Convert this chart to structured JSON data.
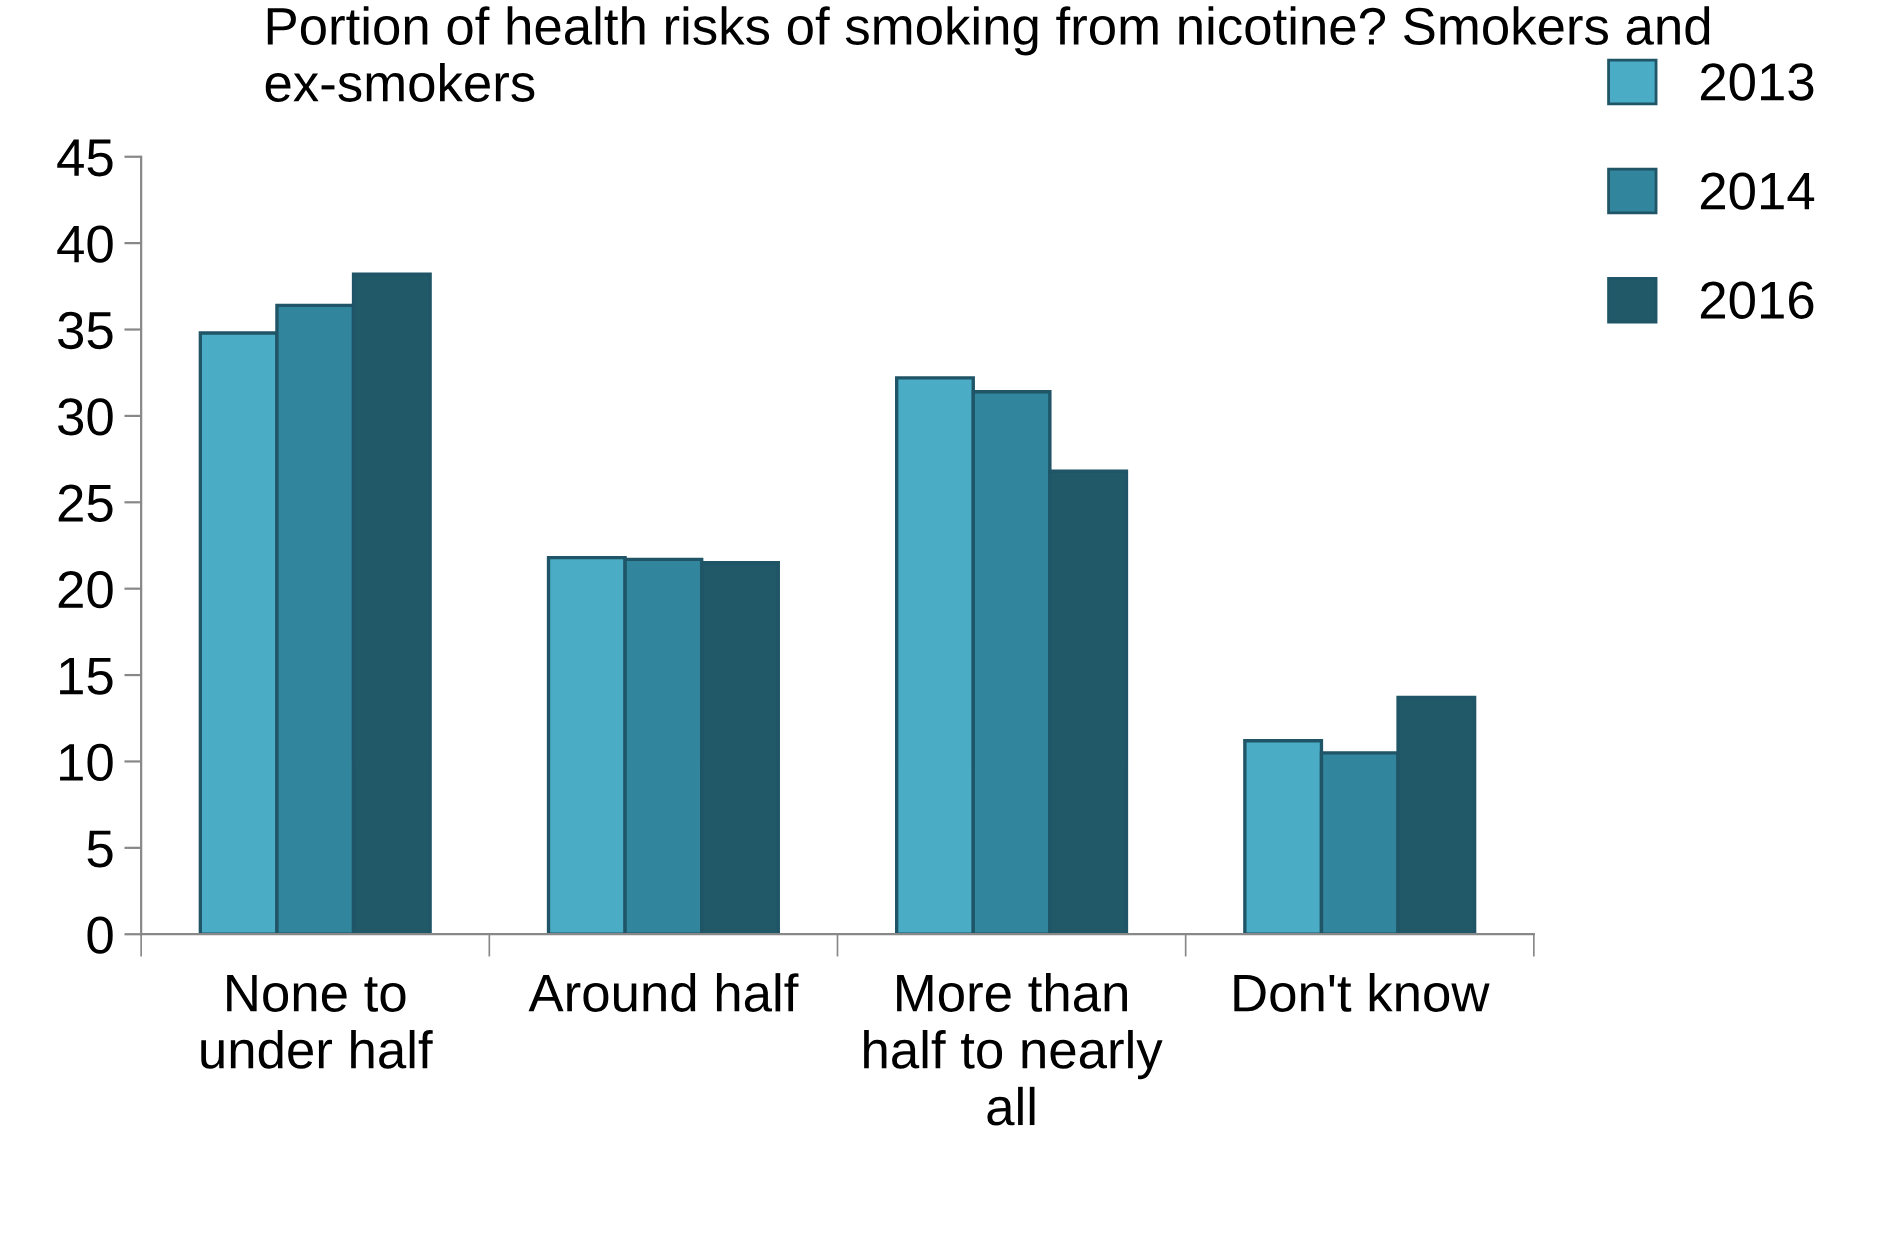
{
  "chart_data": {
    "type": "bar",
    "title": "Portion of health risks of smoking from nicotine? Smokers and ex-smokers",
    "categories": [
      "None to\nunder half",
      "Around half",
      "More than\nhalf to nearly\nall",
      "Don't know"
    ],
    "series": [
      {
        "name": "2013",
        "color": "#4bacc6",
        "values": [
          34.8,
          21.8,
          32.2,
          11.2
        ]
      },
      {
        "name": "2014",
        "color": "#31859c",
        "values": [
          36.4,
          21.7,
          31.4,
          10.5
        ]
      },
      {
        "name": "2016",
        "color": "#215968",
        "values": [
          38.2,
          21.5,
          26.8,
          13.7
        ]
      }
    ],
    "ylim": [
      0,
      45
    ],
    "yticks": [
      0,
      5,
      10,
      15,
      20,
      25,
      30,
      35,
      40,
      45
    ],
    "grid": false,
    "legend": "top right"
  }
}
